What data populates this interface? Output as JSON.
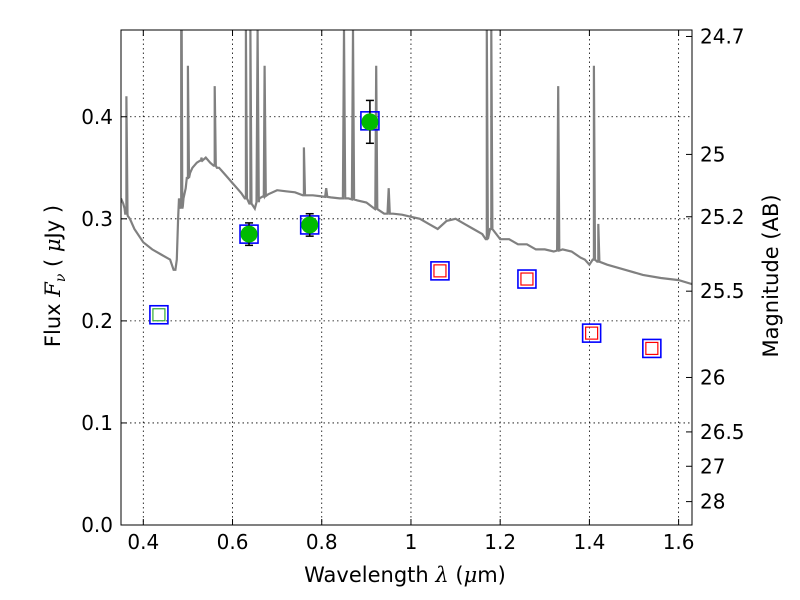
{
  "chart_data": {
    "type": "scatter",
    "title": "",
    "xlabel": "Wavelength  λ (μm)",
    "ylabel": "Flux  F_ν  ( μJy )",
    "y2label": "Magnitude (AB)",
    "xlim": [
      0.35,
      1.63
    ],
    "ylim": [
      0.0,
      0.485
    ],
    "grid": true,
    "x_ticks": [
      0.4,
      0.6,
      0.8,
      1.0,
      1.2,
      1.4,
      1.6
    ],
    "x_tick_labels": [
      "0.4",
      "0.6",
      "0.8",
      "1",
      "1.2",
      "1.4",
      "1.6"
    ],
    "y_ticks": [
      0.0,
      0.1,
      0.2,
      0.3,
      0.4
    ],
    "y_tick_labels": [
      "0.0",
      "0.1",
      "0.2",
      "0.3",
      "0.4"
    ],
    "mag_ticks": [
      24.7,
      25,
      25.2,
      25.5,
      26,
      26.5,
      27,
      28
    ],
    "mag_tick_labels": [
      "24.7",
      "25",
      "25.2",
      "25.5",
      "26",
      "26.5",
      "27",
      "28"
    ],
    "observed": {
      "x": [
        0.637,
        0.773,
        0.908
      ],
      "y": [
        0.285,
        0.294,
        0.395
      ],
      "err": [
        0.011,
        0.011,
        0.021
      ],
      "color": "#00bb00"
    },
    "model_boxes": {
      "x": [
        0.435,
        0.637,
        0.773,
        0.908,
        1.065,
        1.26,
        1.405,
        1.54
      ],
      "y": [
        0.206,
        0.285,
        0.294,
        0.396,
        0.249,
        0.241,
        0.188,
        0.173
      ],
      "color": "#0000ff"
    },
    "model_inner": {
      "x": [
        0.435,
        1.065,
        1.26,
        1.405,
        1.54
      ],
      "y": [
        0.206,
        0.249,
        0.241,
        0.188,
        0.173
      ],
      "colors": [
        "#33aa33",
        "#ff0000",
        "#ff0000",
        "#ff0000",
        "#ff0000"
      ]
    },
    "sed": {
      "color": "#808080",
      "x": [
        0.35,
        0.355,
        0.358,
        0.362,
        0.365,
        0.37,
        0.38,
        0.4,
        0.42,
        0.44,
        0.46,
        0.468,
        0.472,
        0.475,
        0.478,
        0.48,
        0.485,
        0.49,
        0.495,
        0.5,
        0.505,
        0.51,
        0.52,
        0.53,
        0.54,
        0.55,
        0.56,
        0.565,
        0.57,
        0.58,
        0.59,
        0.6,
        0.61,
        0.62,
        0.63,
        0.64,
        0.65,
        0.66,
        0.67,
        0.68,
        0.7,
        0.72,
        0.74,
        0.76,
        0.78,
        0.8,
        0.82,
        0.84,
        0.86,
        0.88,
        0.9,
        0.92,
        0.94,
        0.96,
        0.98,
        1.0,
        1.02,
        1.04,
        1.06,
        1.08,
        1.1,
        1.12,
        1.14,
        1.16,
        1.17,
        1.18,
        1.2,
        1.22,
        1.24,
        1.26,
        1.28,
        1.3,
        1.32,
        1.34,
        1.36,
        1.38,
        1.39,
        1.4,
        1.41,
        1.42,
        1.44,
        1.48,
        1.52,
        1.56,
        1.6,
        1.63
      ],
      "y": [
        0.32,
        0.315,
        0.31,
        0.305,
        0.303,
        0.3,
        0.29,
        0.277,
        0.27,
        0.265,
        0.26,
        0.25,
        0.25,
        0.26,
        0.3,
        0.32,
        0.31,
        0.32,
        0.33,
        0.34,
        0.345,
        0.35,
        0.355,
        0.357,
        0.36,
        0.355,
        0.352,
        0.35,
        0.35,
        0.345,
        0.34,
        0.335,
        0.33,
        0.325,
        0.32,
        0.315,
        0.31,
        0.32,
        0.322,
        0.324,
        0.328,
        0.327,
        0.326,
        0.323,
        0.323,
        0.322,
        0.321,
        0.32,
        0.32,
        0.318,
        0.316,
        0.31,
        0.305,
        0.305,
        0.304,
        0.302,
        0.3,
        0.295,
        0.29,
        0.298,
        0.3,
        0.295,
        0.29,
        0.285,
        0.28,
        0.29,
        0.28,
        0.28,
        0.275,
        0.275,
        0.27,
        0.27,
        0.268,
        0.27,
        0.268,
        0.262,
        0.26,
        0.255,
        0.26,
        0.258,
        0.255,
        0.25,
        0.245,
        0.242,
        0.24,
        0.236
      ]
    },
    "sed_lines": [
      {
        "x": 0.362,
        "peak": 0.42
      },
      {
        "x": 0.485,
        "peak": 0.485
      },
      {
        "x": 0.4861,
        "peak": 0.485
      },
      {
        "x": 0.5,
        "peak": 0.45
      },
      {
        "x": 0.53,
        "peak": 0.36
      },
      {
        "x": 0.56,
        "peak": 0.43
      },
      {
        "x": 0.63,
        "peak": 0.485
      },
      {
        "x": 0.64,
        "peak": 0.485
      },
      {
        "x": 0.6563,
        "peak": 0.485
      },
      {
        "x": 0.672,
        "peak": 0.45
      },
      {
        "x": 0.76,
        "peak": 0.37
      },
      {
        "x": 0.81,
        "peak": 0.33
      },
      {
        "x": 0.85,
        "peak": 0.485
      },
      {
        "x": 0.87,
        "peak": 0.485
      },
      {
        "x": 0.922,
        "peak": 0.45
      },
      {
        "x": 0.95,
        "peak": 0.33
      },
      {
        "x": 1.17,
        "peak": 0.485
      },
      {
        "x": 1.18,
        "peak": 0.485
      },
      {
        "x": 1.33,
        "peak": 0.43
      },
      {
        "x": 1.41,
        "peak": 0.45
      },
      {
        "x": 1.42,
        "peak": 0.295
      }
    ]
  }
}
